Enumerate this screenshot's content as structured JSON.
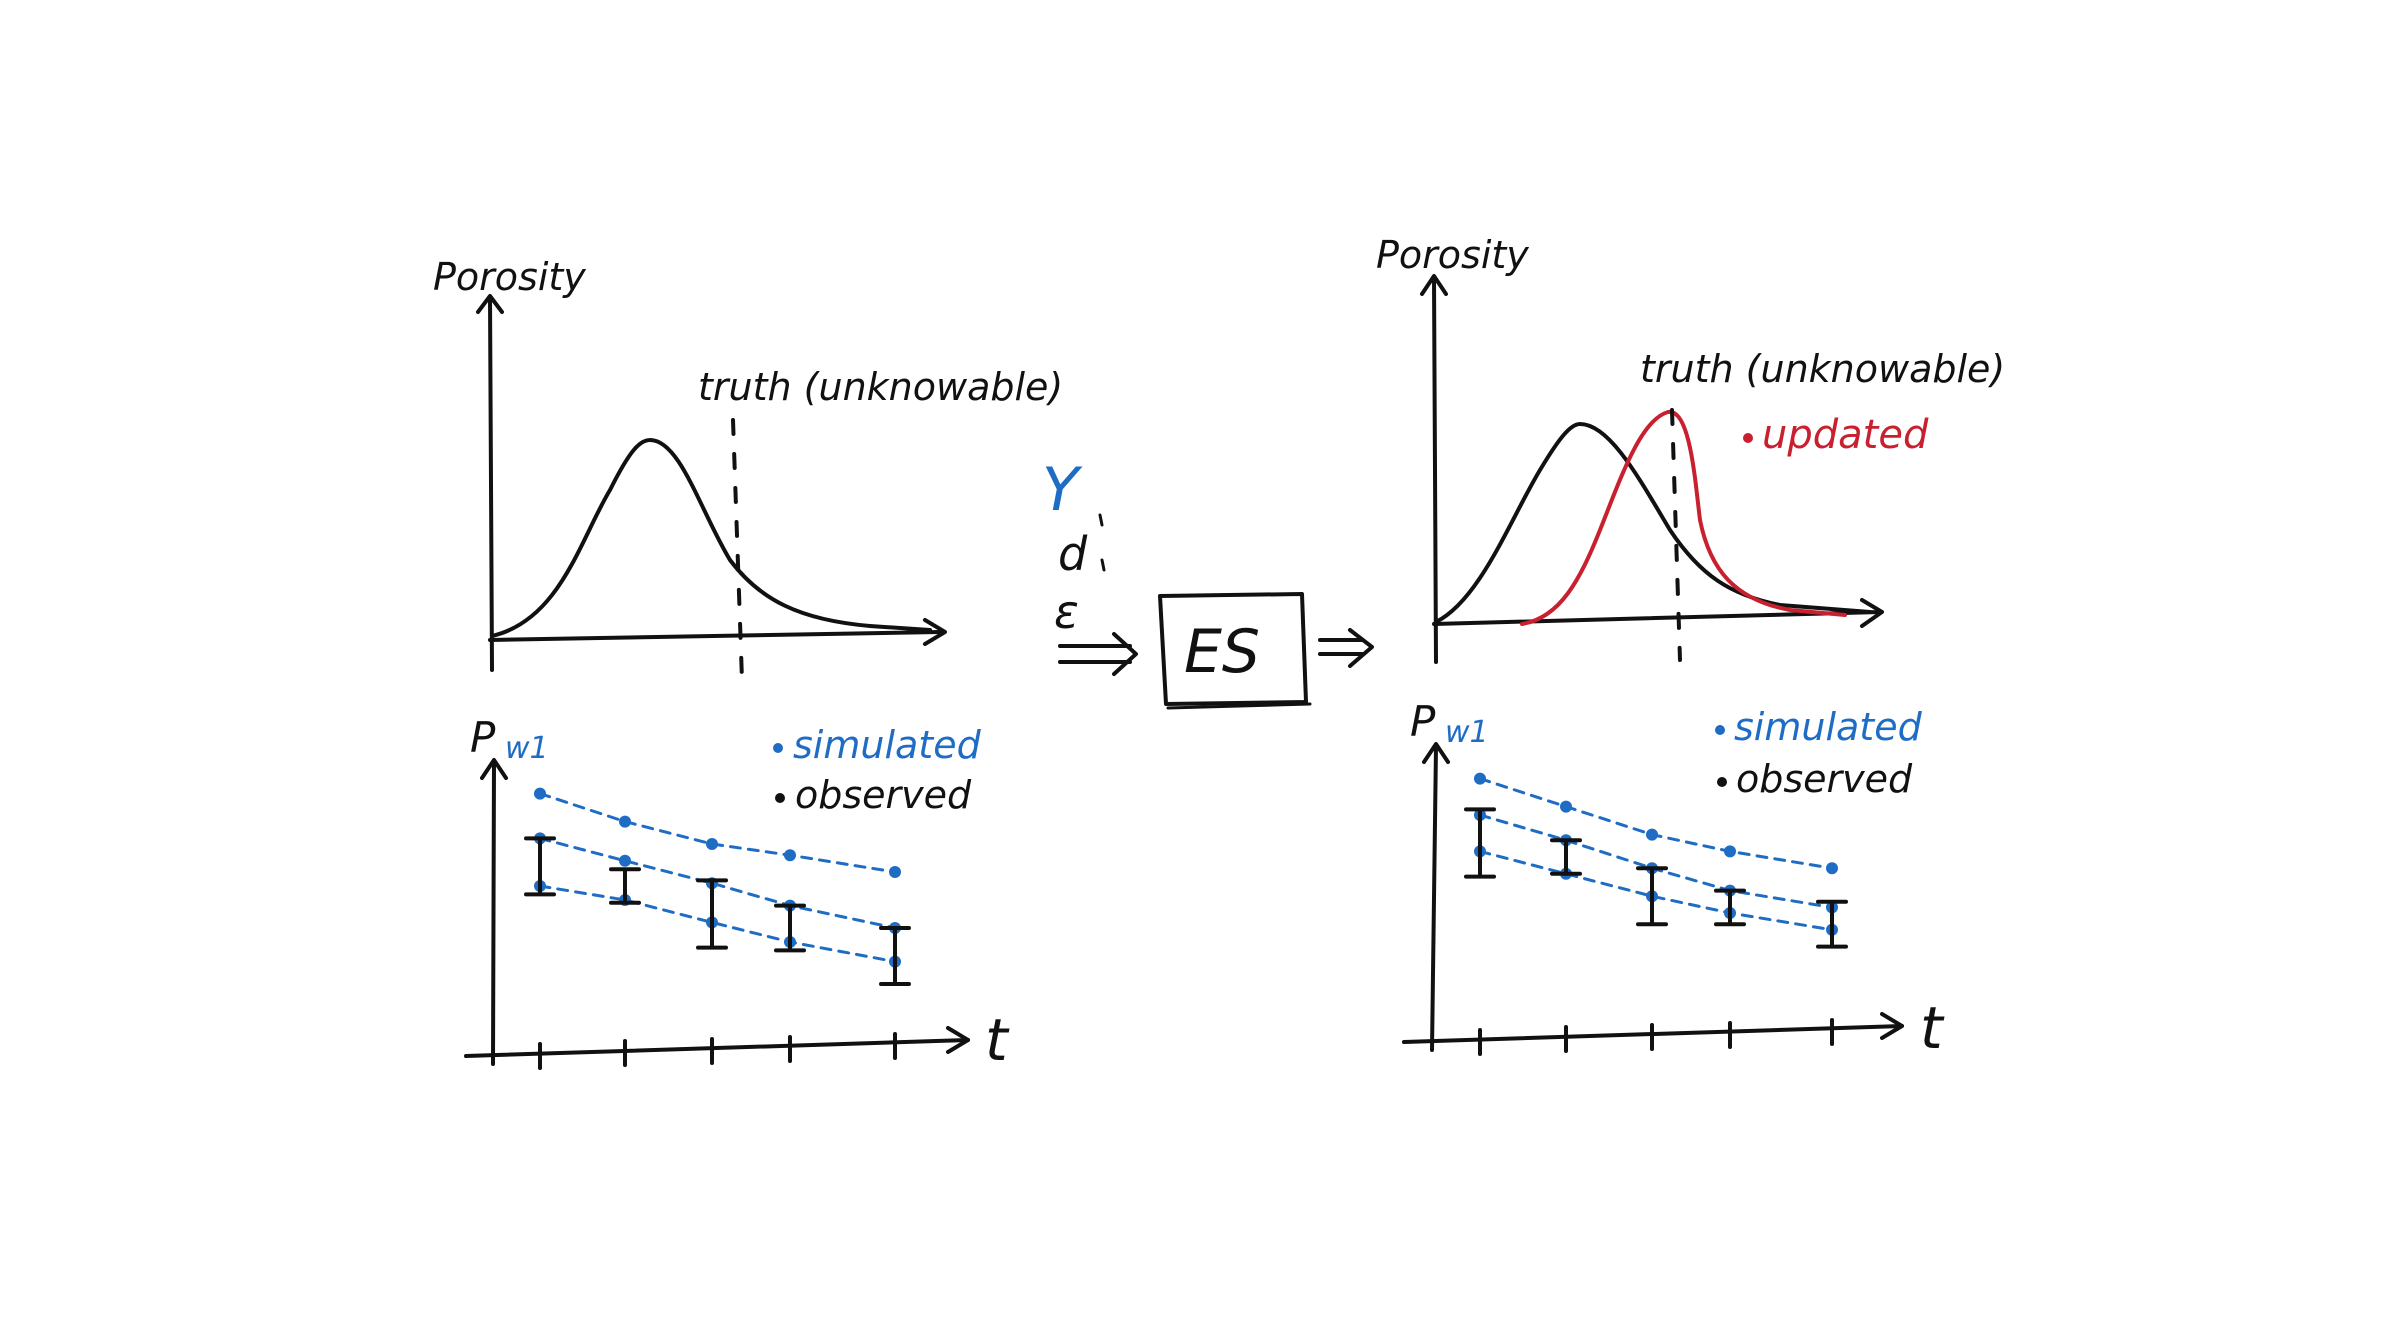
{
  "colors": {
    "ink": "#111111",
    "simulated": "#1f6cc4",
    "updated": "#c8202e",
    "background": "#ffffff"
  },
  "left_panel": {
    "top_ylabel": "Porosity",
    "truth_label": "truth (unknowable)",
    "bottom_ylabel": "P",
    "bottom_ylabel_sub": "w1",
    "legend": {
      "simulated": "simulated",
      "observed": "observed"
    },
    "xlabel": "t"
  },
  "center": {
    "inputs": [
      "Y",
      "d",
      "ε"
    ],
    "box_label": "ES"
  },
  "right_panel": {
    "top_ylabel": "Porosity",
    "truth_label": "truth (unknowable)",
    "updated_label": "updated",
    "bottom_ylabel": "P",
    "bottom_ylabel_sub": "w1",
    "legend": {
      "simulated": "simulated",
      "observed": "observed"
    },
    "xlabel": "t"
  },
  "chart_data": [
    {
      "type": "line",
      "description_role": "prior porosity distribution",
      "title": "",
      "ylabel": "Porosity",
      "series": [
        {
          "name": "",
          "shape": "right-skewed bell, peak left of truth"
        }
      ],
      "annotations": [
        "truth (unknowable)"
      ]
    },
    {
      "type": "scatter",
      "ylabel": "P w1",
      "xlabel": "t",
      "x_ticks": 5,
      "series": [
        {
          "name": "simulated",
          "values": [
            [
              0.88,
              0.78,
              0.7,
              0.66,
              0.6
            ],
            [
              0.72,
              0.64,
              0.56,
              0.48,
              0.4
            ],
            [
              0.55,
              0.5,
              0.42,
              0.35,
              0.28
            ]
          ]
        },
        {
          "name": "observed",
          "values": [
            0.62,
            0.55,
            0.45,
            0.4,
            0.3
          ],
          "error": [
            0.1,
            0.06,
            0.12,
            0.08,
            0.1
          ]
        }
      ]
    },
    {
      "type": "line",
      "description_role": "prior and updated porosity distributions",
      "ylabel": "Porosity",
      "series": [
        {
          "name": "",
          "shape": "prior bell"
        },
        {
          "name": "updated",
          "shape": "narrower bell centered at truth"
        }
      ],
      "annotations": [
        "truth (unknowable)",
        "updated"
      ]
    },
    {
      "type": "scatter",
      "ylabel": "P w1",
      "xlabel": "t",
      "x_ticks": 5,
      "series": [
        {
          "name": "simulated",
          "values": [
            [
              0.88,
              0.78,
              0.68,
              0.62,
              0.56
            ],
            [
              0.75,
              0.66,
              0.56,
              0.48,
              0.42
            ],
            [
              0.62,
              0.54,
              0.46,
              0.4,
              0.34
            ]
          ]
        },
        {
          "name": "observed",
          "values": [
            0.65,
            0.6,
            0.46,
            0.42,
            0.36
          ],
          "error": [
            0.12,
            0.06,
            0.1,
            0.06,
            0.08
          ]
        }
      ]
    }
  ]
}
